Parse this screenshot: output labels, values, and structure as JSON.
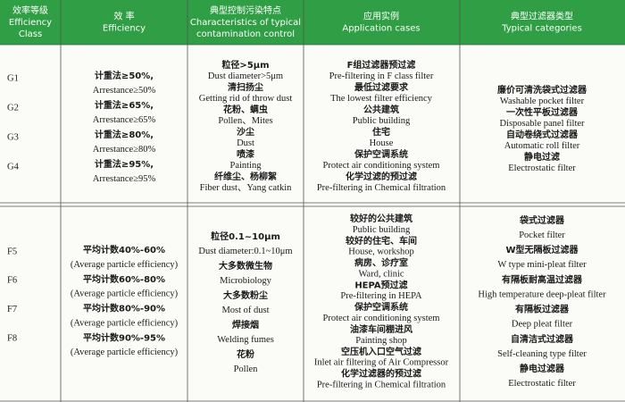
{
  "header": {
    "cells": [
      [
        "效率等级",
        "Efficiency",
        "Class"
      ],
      [
        "效 率",
        "Efficiency"
      ],
      [
        "典型控制污染特点",
        "Characteristics of typical",
        "contamination control"
      ],
      [
        "应用实例",
        "Application cases"
      ],
      [
        "典型过滤器类型",
        "Typical categories"
      ]
    ]
  },
  "sections": [
    {
      "columns": [
        [
          "G1",
          "G2",
          "G3",
          "G4"
        ],
        [
          "计重法≥50%,",
          "Arrestance≥50%",
          "计重法≥65%,",
          "Arrestance≥65%",
          "计重法≥80%,",
          "Arrestance≥80%",
          "计重法≥95%,",
          "Arrestance≥95%"
        ],
        [
          "粒径>5μm",
          "Dust diameter>5μm",
          "清扫扬尘",
          "Getting rid of throw dust",
          "花粉、螨虫",
          "Pollen、Mites",
          "沙尘",
          "Dust",
          "喷漆",
          "Painting",
          "纤维尘、杨柳絮",
          "Fiber dust、Yang catkin"
        ],
        [
          "F组过滤器预过滤",
          "Pre-filtering in F class filter",
          "最低过滤要求",
          "The lowest filter efficiency",
          "公共建筑",
          "Public building",
          "住宅",
          "House",
          "保护空调系统",
          "Protect air conditioning system",
          "化学过滤的预过滤",
          "Pre-filtering in Chemical filtration"
        ],
        [
          "廉价可清洗袋式过滤器",
          "Washable pocket filter",
          "一次性平板过滤器",
          "Disposable panel filter",
          "自动卷绕式过滤器",
          "Automatic roll filter",
          "静电过滤",
          "Electrostatic filter"
        ]
      ]
    },
    {
      "columns": [
        [
          "F5",
          "F6",
          "F7",
          "F8"
        ],
        [
          "平均计数40%-60%",
          "(Average particle efficiency)",
          "平均计数60%-80%",
          "(Average particle efficiency)",
          "平均计数80%-90%",
          "(Average particle efficiency)",
          "平均计数90%-95%",
          "(Average particle efficiency)"
        ],
        [
          "粒径0.1~10μm",
          "Dust diameter:0.1~10μm",
          "大多数微生物",
          "Microbiology",
          "大多数粉尘",
          "Most of dust",
          "焊接烟",
          "Welding fumes",
          "花粉",
          "Pollen"
        ],
        [
          "较好的公共建筑",
          "Public building",
          "较好的住宅、车间",
          "House, workshop",
          "病房、诊疗室",
          "Ward, clinic",
          "HEPA预过滤",
          "Pre-filtering in HEPA",
          "保护空调系统",
          "Protect air conditioning system",
          "油漆车间棚进风",
          "Painting shop",
          "空压机入口空气过滤",
          "Inlet air filtering of Air Compressor",
          "化学过滤器的预过滤",
          "Pre-filtering in Chemical filtration"
        ],
        [
          "袋式过滤器",
          "Pocket filter",
          "W型无隔板过滤器",
          "W type mini-pleat filter",
          "有隔板耐高温过滤器",
          "High temperature deep-pleat filter",
          "有隔板过滤器",
          "Deep pleat filter",
          "自清洁式过滤器",
          "Self-cleaning type filter",
          "静电过滤器",
          "Electrostatic filter"
        ]
      ]
    }
  ]
}
